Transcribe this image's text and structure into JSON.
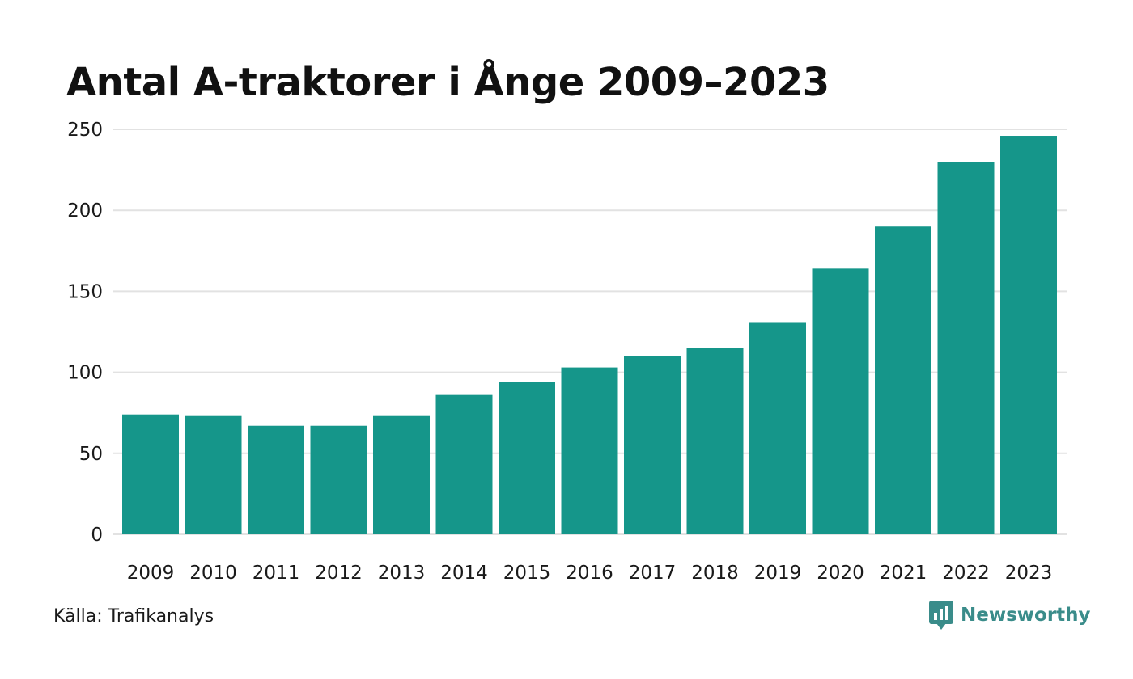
{
  "title": "Antal A-traktorer i Ånge 2009–2023",
  "source": "Källa: Trafikanalys",
  "brand": {
    "name": "Newsworthy",
    "icon": "newsworthy-logo-icon",
    "color": "#3a8c8a"
  },
  "colors": {
    "bar": "#15968a",
    "grid": "#e2e2e2",
    "text": "#111111"
  },
  "chart_data": {
    "type": "bar",
    "title": "Antal A-traktorer i Ånge 2009–2023",
    "xlabel": "",
    "ylabel": "",
    "categories": [
      "2009",
      "2010",
      "2011",
      "2012",
      "2013",
      "2014",
      "2015",
      "2016",
      "2017",
      "2018",
      "2019",
      "2020",
      "2021",
      "2022",
      "2023"
    ],
    "values": [
      74,
      73,
      67,
      67,
      73,
      86,
      94,
      103,
      110,
      115,
      131,
      164,
      190,
      230,
      246
    ],
    "ylim": [
      0,
      250
    ],
    "yticks": [
      0,
      50,
      100,
      150,
      200,
      250
    ],
    "grid": true,
    "legend": "none"
  }
}
